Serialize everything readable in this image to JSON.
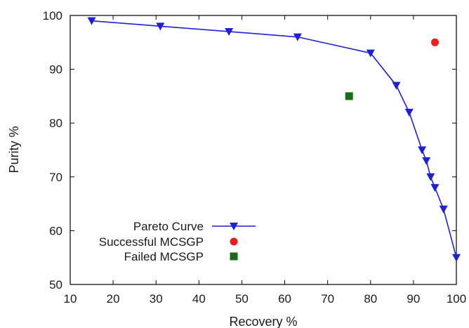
{
  "chart_data": {
    "type": "scatter",
    "xlabel": "Recovery %",
    "ylabel": "Purity %",
    "xlim": [
      10,
      100
    ],
    "ylim": [
      50,
      100
    ],
    "xticks": [
      10,
      20,
      30,
      40,
      50,
      60,
      70,
      80,
      90,
      100
    ],
    "yticks": [
      50,
      60,
      70,
      80,
      90,
      100
    ],
    "grid": false,
    "legend_position": "bottom-left",
    "series": [
      {
        "name": "Pareto Curve",
        "kind": "line-with-markers",
        "marker": "triangle-down",
        "color": "#1f1fd6",
        "points": [
          {
            "x": 15,
            "y": 99
          },
          {
            "x": 31,
            "y": 98
          },
          {
            "x": 47,
            "y": 97
          },
          {
            "x": 63,
            "y": 96
          },
          {
            "x": 80,
            "y": 93
          },
          {
            "x": 86,
            "y": 87
          },
          {
            "x": 89,
            "y": 82
          },
          {
            "x": 92,
            "y": 75
          },
          {
            "x": 93,
            "y": 73
          },
          {
            "x": 94,
            "y": 70
          },
          {
            "x": 95,
            "y": 68
          },
          {
            "x": 97,
            "y": 64
          },
          {
            "x": 100,
            "y": 55
          }
        ]
      },
      {
        "name": "Successful MCSGP",
        "kind": "marker",
        "marker": "circle",
        "color": "#ee1c1c",
        "points": [
          {
            "x": 95,
            "y": 95
          }
        ]
      },
      {
        "name": "Failed MCSGP",
        "kind": "marker",
        "marker": "square",
        "color": "#1a6b1a",
        "points": [
          {
            "x": 75,
            "y": 85
          }
        ]
      }
    ]
  }
}
